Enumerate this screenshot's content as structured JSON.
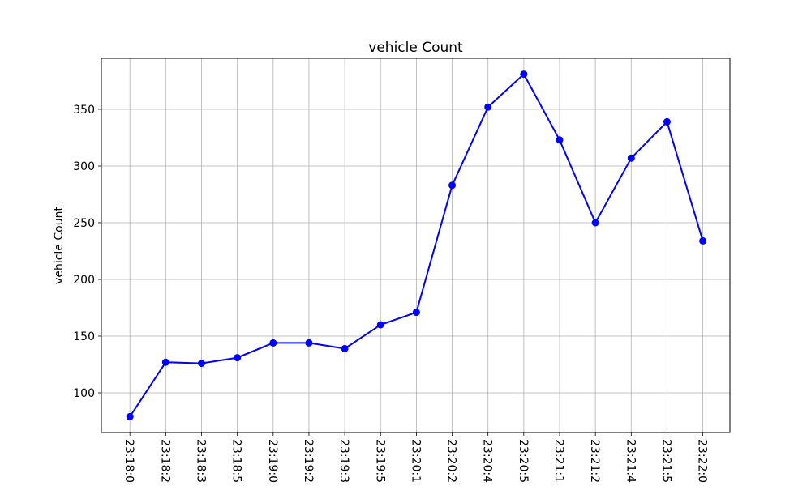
{
  "chart_data": {
    "type": "line",
    "title": "vehicle Count",
    "xlabel": "",
    "ylabel": "vehicle Count",
    "categories": [
      "23:18:0",
      "23:18:2",
      "23:18:3",
      "23:18:5",
      "23:19:0",
      "23:19:2",
      "23:19:3",
      "23:19:5",
      "23:20:1",
      "23:20:2",
      "23:20:4",
      "23:20:5",
      "23:21:1",
      "23:21:2",
      "23:21:4",
      "23:21:5",
      "23:22:0"
    ],
    "series": [
      {
        "values": [
          79,
          127,
          126,
          131,
          144,
          144,
          139,
          160,
          171,
          283,
          352,
          381,
          323,
          250,
          307,
          339,
          234
        ]
      }
    ],
    "ylim": [
      65,
      395
    ],
    "yticks": [
      100,
      150,
      200,
      250,
      300,
      350
    ],
    "grid": true,
    "line_color": "#0000ff",
    "marker": "circle"
  }
}
